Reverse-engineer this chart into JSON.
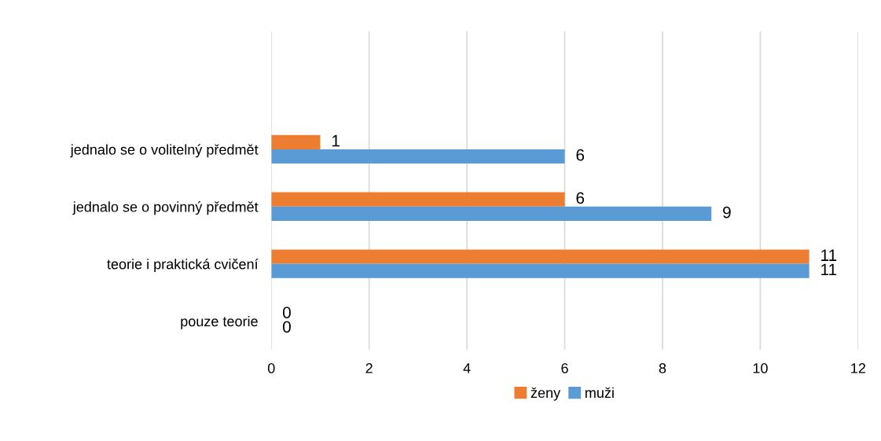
{
  "chart_data": {
    "type": "bar",
    "orientation": "horizontal",
    "categories": [
      "jednalo se o volitelný předmět",
      "jednalo se o povinný předmět",
      "teorie i praktická cvičení",
      "pouze teorie"
    ],
    "series": [
      {
        "name": "ženy",
        "color": "#ed7d31",
        "values": [
          1,
          6,
          11,
          0
        ]
      },
      {
        "name": "muži",
        "color": "#5b9bd5",
        "values": [
          6,
          9,
          11,
          0
        ]
      }
    ],
    "xlim": [
      0,
      12
    ],
    "xticks": [
      0,
      2,
      4,
      6,
      8,
      10,
      12
    ],
    "grid": "x",
    "legend": "bottom",
    "data_labels": true
  }
}
